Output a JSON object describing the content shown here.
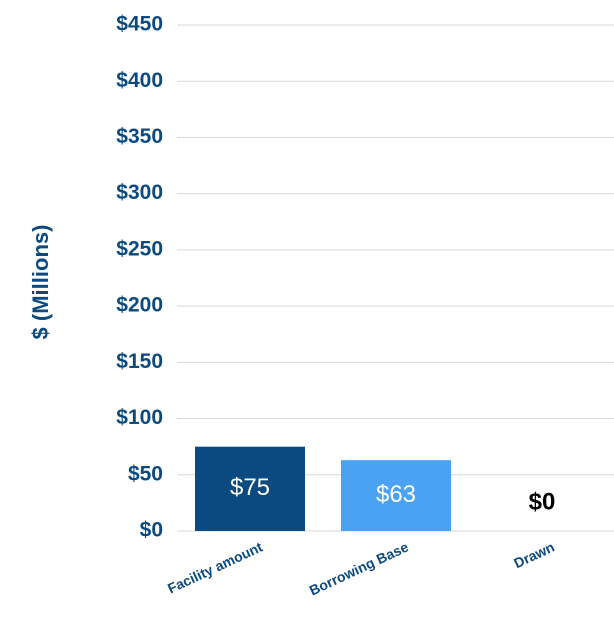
{
  "chart_data": {
    "type": "bar",
    "y_axis_label": "$ (Millions)",
    "categories": [
      "Facility amount",
      "Borrowing Base",
      "Drawn"
    ],
    "values": [
      75,
      63,
      0
    ],
    "value_labels": [
      "$75",
      "$63",
      "$0"
    ],
    "colors": [
      "#0b4a80",
      "#4aa3f2",
      "#4aa3f2"
    ],
    "ylim": [
      0,
      450
    ],
    "yticks": [
      {
        "value": 0,
        "label": "$0"
      },
      {
        "value": 50,
        "label": "$50"
      },
      {
        "value": 100,
        "label": "$100"
      },
      {
        "value": 150,
        "label": "$150"
      },
      {
        "value": 200,
        "label": "$200"
      },
      {
        "value": 250,
        "label": "$250"
      },
      {
        "value": 300,
        "label": "$300"
      },
      {
        "value": 350,
        "label": "$350"
      },
      {
        "value": 400,
        "label": "$400"
      },
      {
        "value": 450,
        "label": "$450"
      }
    ],
    "grid": true
  }
}
